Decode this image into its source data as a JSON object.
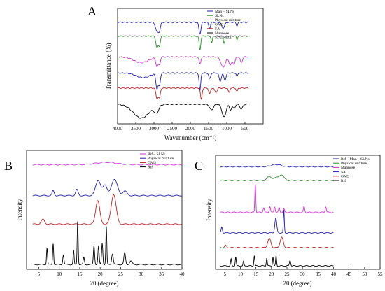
{
  "figure": {
    "panels": [
      {
        "letter": "A",
        "xlabel": "Wavenumber (cm⁻¹)",
        "ylabel": "Transmittance (%)"
      },
      {
        "letter": "B",
        "xlabel": "2θ (degree)",
        "ylabel": "Intensity"
      },
      {
        "letter": "C",
        "xlabel": "2θ (degree)",
        "ylabel": "Intensity"
      }
    ]
  },
  "chart_data": [
    {
      "type": "line",
      "panel": "A",
      "xlabel": "Wavenumber (cm⁻¹)",
      "ylabel": "Transmittance (%)",
      "xlim": [
        4000,
        0
      ],
      "x_ticks": [
        4000,
        3500,
        3000,
        2500,
        2000,
        1500,
        1000,
        500
      ],
      "y_ticks_shown": false,
      "legend_position": "top-right",
      "annotations": [
        "1072.9",
        "1413.1"
      ],
      "series": [
        {
          "name": "Man – SLNs",
          "color": "#1f1fa8",
          "baseline": 88,
          "peaks": [
            [
              2917,
              8,
              40
            ],
            [
              2849,
              6,
              30
            ],
            [
              1737,
              10,
              28
            ],
            [
              1470,
              5,
              25
            ],
            [
              1100,
              5,
              40
            ],
            [
              720,
              3,
              20
            ]
          ]
        },
        {
          "name": "SLNs",
          "color": "#2e8b2e",
          "baseline": 76,
          "peaks": [
            [
              2917,
              10,
              30
            ],
            [
              2849,
              8,
              25
            ],
            [
              1737,
              12,
              22
            ],
            [
              1413,
              6,
              18
            ],
            [
              1073,
              6,
              20
            ],
            [
              720,
              3,
              15
            ]
          ]
        },
        {
          "name": "Physical mixture",
          "color": "#cc33cc",
          "baseline": 58,
          "peaks": [
            [
              3350,
              5,
              200
            ],
            [
              2917,
              8,
              30
            ],
            [
              2849,
              6,
              25
            ],
            [
              1737,
              6,
              25
            ],
            [
              1100,
              9,
              60
            ],
            [
              900,
              7,
              40
            ],
            [
              800,
              6,
              30
            ],
            [
              600,
              5,
              30
            ]
          ]
        },
        {
          "name": "GMS",
          "color": "#1f1fa8",
          "baseline": 44,
          "peaks": [
            [
              3300,
              4,
              180
            ],
            [
              2917,
              13,
              30
            ],
            [
              2849,
              10,
              25
            ],
            [
              1737,
              15,
              22
            ],
            [
              1470,
              5,
              25
            ],
            [
              1180,
              7,
              30
            ],
            [
              1050,
              6,
              30
            ],
            [
              720,
              3,
              20
            ]
          ]
        },
        {
          "name": "SA",
          "color": "#b22222",
          "baseline": 31,
          "peaks": [
            [
              2917,
              9,
              30
            ],
            [
              2849,
              8,
              25
            ],
            [
              1700,
              10,
              22
            ],
            [
              1470,
              5,
              25
            ],
            [
              1300,
              4,
              30
            ],
            [
              940,
              4,
              20
            ],
            [
              720,
              3,
              20
            ]
          ]
        },
        {
          "name": "Mannose",
          "color": "#000000",
          "baseline": 17,
          "peaks": [
            [
              3350,
              12,
              220
            ],
            [
              2930,
              6,
              60
            ],
            [
              1420,
              5,
              50
            ],
            [
              1100,
              7,
              50
            ],
            [
              1050,
              6,
              40
            ],
            [
              900,
              5,
              30
            ],
            [
              800,
              4,
              30
            ],
            [
              600,
              4,
              40
            ]
          ]
        }
      ]
    },
    {
      "type": "line",
      "panel": "B",
      "xlabel": "2θ (degree)",
      "ylabel": "Intensity",
      "xlim": [
        2,
        40
      ],
      "x_ticks": [
        5,
        10,
        15,
        20,
        25,
        30,
        35,
        40
      ],
      "y_ticks_shown": false,
      "legend_position": "top-right",
      "series": [
        {
          "name": "Rif – SLNs",
          "color": "#cc33cc",
          "baseline": 88,
          "peaks": [
            [
              21.5,
              2,
              2.5
            ]
          ]
        },
        {
          "name": "Physical mixture",
          "color": "#1f1fa8",
          "baseline": 62,
          "peaks": [
            [
              8.5,
              4,
              0.25
            ],
            [
              14.3,
              5,
              0.3
            ],
            [
              19.5,
              13,
              0.6
            ],
            [
              21.2,
              9,
              0.5
            ],
            [
              23.5,
              14,
              0.7
            ],
            [
              26,
              4,
              0.5
            ]
          ]
        },
        {
          "name": "GMS",
          "color": "#b22222",
          "baseline": 38,
          "peaks": [
            [
              6,
              4,
              0.4
            ],
            [
              19.4,
              20,
              0.5
            ],
            [
              23.3,
              25,
              0.6
            ]
          ]
        },
        {
          "name": "Rif",
          "color": "#000000",
          "baseline": 4,
          "peaks": [
            [
              7,
              14,
              0.12
            ],
            [
              8.5,
              18,
              0.12
            ],
            [
              11,
              8,
              0.15
            ],
            [
              13.5,
              12,
              0.12
            ],
            [
              14.5,
              37,
              0.12
            ],
            [
              16,
              6,
              0.15
            ],
            [
              18.5,
              16,
              0.15
            ],
            [
              19.6,
              15,
              0.15
            ],
            [
              20.5,
              18,
              0.15
            ],
            [
              21.5,
              32,
              0.12
            ],
            [
              23,
              9,
              0.2
            ],
            [
              26,
              10,
              0.2
            ],
            [
              27.5,
              3,
              0.3
            ]
          ]
        }
      ]
    },
    {
      "type": "line",
      "panel": "C",
      "xlabel": "2θ (degree)",
      "ylabel": "Intensity",
      "xlim": [
        2,
        55
      ],
      "x_ticks": [
        5,
        10,
        15,
        20,
        25,
        30,
        35,
        40,
        45,
        50,
        55
      ],
      "y_ticks_shown": false,
      "legend_position": "top-right",
      "series": [
        {
          "name": "Rif – Man – SLNs",
          "color": "#1f1fa8",
          "baseline": 90,
          "peaks": [
            [
              21.5,
              2,
              1.5
            ]
          ]
        },
        {
          "name": "Physical mixture",
          "color": "#2e8b2e",
          "baseline": 78,
          "peaks": [
            [
              19.3,
              4,
              0.6
            ],
            [
              21.5,
              3,
              0.6
            ],
            [
              23.3,
              5,
              0.7
            ]
          ]
        },
        {
          "name": "Mannose",
          "color": "#cc33cc",
          "baseline": 50,
          "peaks": [
            [
              14.8,
              25,
              0.15
            ],
            [
              17.5,
              4,
              0.2
            ],
            [
              19.5,
              5,
              0.2
            ],
            [
              21,
              5,
              0.2
            ],
            [
              22.5,
              4,
              0.2
            ],
            [
              24,
              3,
              0.2
            ],
            [
              30.5,
              5,
              0.2
            ],
            [
              37.5,
              5,
              0.2
            ]
          ]
        },
        {
          "name": "SA",
          "color": "#1f1fa8",
          "baseline": 32,
          "peaks": [
            [
              4,
              5,
              0.2
            ],
            [
              21.4,
              13,
              0.3
            ],
            [
              24,
              20,
              0.15
            ]
          ]
        },
        {
          "name": "GMS",
          "color": "#b22222",
          "baseline": 19,
          "peaks": [
            [
              5.2,
              2,
              0.3
            ],
            [
              19.3,
              8,
              0.5
            ],
            [
              23.3,
              9,
              0.5
            ]
          ]
        },
        {
          "name": "Rif",
          "color": "#000000",
          "baseline": 3,
          "peaks": [
            [
              7,
              6,
              0.15
            ],
            [
              8.5,
              8,
              0.15
            ],
            [
              11,
              4,
              0.15
            ],
            [
              14.5,
              9,
              0.15
            ],
            [
              18.5,
              7,
              0.15
            ],
            [
              20.5,
              8,
              0.15
            ],
            [
              21.5,
              9,
              0.15
            ],
            [
              26,
              5,
              0.2
            ]
          ]
        }
      ]
    }
  ]
}
